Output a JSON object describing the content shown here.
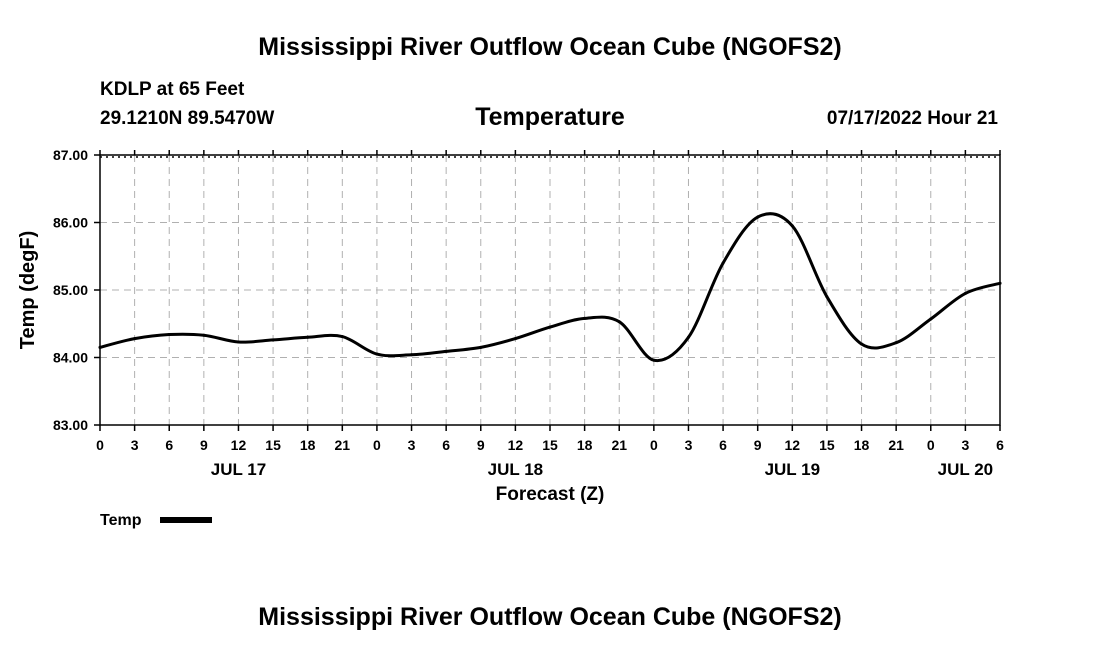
{
  "header": {
    "title": "Mississippi River Outflow Ocean Cube (NGOFS2)",
    "station": "KDLP at 65 Feet",
    "coords": "29.1210N  89.5470W",
    "chart_title": "Temperature",
    "datetime": "07/17/2022 Hour 21"
  },
  "legend": {
    "label": "Temp"
  },
  "footer": {
    "title": "Mississippi River Outflow Ocean Cube (NGOFS2)"
  },
  "colors": {
    "line": "#000000",
    "grid": "#b0b0b0",
    "background": "#ffffff"
  },
  "chart_data": {
    "type": "line",
    "title": "Temperature",
    "xlabel": "Forecast (Z)",
    "ylabel": "Temp (degF)",
    "ylim": [
      83.0,
      87.0
    ],
    "yticks": [
      "83.00",
      "84.00",
      "85.00",
      "86.00",
      "87.00"
    ],
    "x_hour_range": [
      0,
      78
    ],
    "x_tick_labels": [
      "0",
      "3",
      "6",
      "9",
      "12",
      "15",
      "18",
      "21",
      "0",
      "3",
      "6",
      "9",
      "12",
      "15",
      "18",
      "21",
      "0",
      "3",
      "6",
      "9",
      "12",
      "15",
      "18",
      "21",
      "0",
      "3",
      "6"
    ],
    "day_labels": [
      {
        "label": "JUL 17",
        "hour": 12
      },
      {
        "label": "JUL 18",
        "hour": 36
      },
      {
        "label": "JUL 19",
        "hour": 60
      },
      {
        "label": "JUL 20",
        "hour": 75
      }
    ],
    "series": [
      {
        "name": "Temp",
        "x": [
          0,
          3,
          6,
          9,
          12,
          15,
          18,
          21,
          24,
          27,
          30,
          33,
          36,
          39,
          42,
          45,
          48,
          51,
          54,
          57,
          60,
          63,
          66,
          69,
          72,
          75,
          78
        ],
        "values": [
          84.15,
          84.28,
          84.34,
          84.33,
          84.23,
          84.26,
          84.3,
          84.31,
          84.05,
          84.04,
          84.09,
          84.15,
          84.28,
          84.45,
          84.58,
          84.53,
          83.96,
          84.3,
          85.4,
          86.08,
          85.95,
          84.9,
          84.2,
          84.22,
          84.57,
          84.95,
          85.1
        ]
      }
    ]
  }
}
